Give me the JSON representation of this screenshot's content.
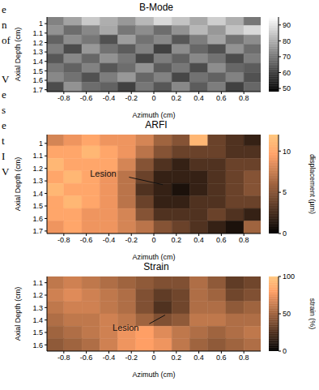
{
  "margin_text": [
    [
      "e",
      "n",
      "of"
    ],
    [
      "V",
      "e",
      "s",
      "e",
      "t",
      "I",
      "V"
    ]
  ],
  "chart_data": [
    {
      "type": "heatmap",
      "title": "B-Mode",
      "x_label": "Azimuth (cm)",
      "y_label": "Axial Depth (cm)",
      "xlim": [
        -0.95,
        0.95
      ],
      "xticks": [
        -0.8,
        -0.6,
        -0.4,
        -0.2,
        0,
        0.2,
        0.4,
        0.6,
        0.8
      ],
      "ylim": [
        0.93,
        1.72
      ],
      "yticks": [
        1,
        1.1,
        1.2,
        1.3,
        1.4,
        1.5,
        1.6,
        1.7
      ],
      "x": [
        -0.88,
        -0.72,
        -0.56,
        -0.4,
        -0.24,
        -0.08,
        0.08,
        0.24,
        0.4,
        0.56,
        0.72,
        0.88
      ],
      "y": [
        0.97,
        1.07,
        1.17,
        1.27,
        1.37,
        1.47,
        1.57,
        1.67
      ],
      "cells": [
        [
          72,
          78,
          85,
          80,
          76,
          82,
          88,
          84,
          79,
          86,
          80,
          70
        ],
        [
          75,
          68,
          73,
          79,
          70,
          74,
          68,
          75,
          82,
          76,
          84,
          88
        ],
        [
          66,
          74,
          70,
          63,
          77,
          69,
          73,
          64,
          71,
          78,
          69,
          74
        ],
        [
          71,
          62,
          76,
          69,
          65,
          72,
          60,
          74,
          67,
          63,
          75,
          68
        ],
        [
          64,
          73,
          67,
          75,
          70,
          61,
          71,
          66,
          73,
          69,
          62,
          71
        ],
        [
          70,
          66,
          72,
          64,
          68,
          75,
          65,
          70,
          62,
          74,
          67,
          65
        ],
        [
          73,
          69,
          63,
          71,
          76,
          67,
          72,
          61,
          69,
          66,
          72,
          63
        ],
        [
          62,
          75,
          68,
          66,
          60,
          70,
          64,
          73,
          65,
          71,
          60,
          67
        ]
      ],
      "color": "gray",
      "colorbar": {
        "range": [
          48,
          95
        ],
        "ticks": [
          50,
          60,
          70,
          80,
          90
        ]
      }
    },
    {
      "type": "heatmap",
      "title": "ARFI",
      "x_label": "Azimuth (cm)",
      "y_label": "Axial Depth (cm)",
      "xlim": [
        -0.95,
        0.95
      ],
      "xticks": [
        -0.8,
        -0.6,
        -0.4,
        -0.2,
        0,
        0.2,
        0.4,
        0.6,
        0.8
      ],
      "ylim": [
        0.93,
        1.72
      ],
      "yticks": [
        1,
        1.1,
        1.2,
        1.3,
        1.4,
        1.5,
        1.6,
        1.7
      ],
      "x": [
        -0.88,
        -0.72,
        -0.56,
        -0.4,
        -0.24,
        -0.08,
        0.08,
        0.24,
        0.4,
        0.56,
        0.72,
        0.88
      ],
      "y": [
        0.97,
        1.07,
        1.17,
        1.27,
        1.37,
        1.47,
        1.57,
        1.67
      ],
      "cells": [
        [
          8,
          9,
          10,
          9,
          9,
          8,
          6,
          5,
          11,
          4,
          3,
          2
        ],
        [
          10,
          10,
          11,
          10,
          9,
          7,
          5,
          4,
          4,
          4,
          3,
          3
        ],
        [
          11,
          10,
          10,
          10,
          8,
          5,
          3,
          2,
          3,
          3,
          4,
          4
        ],
        [
          10,
          11,
          10,
          9,
          7,
          4,
          2,
          2,
          2,
          3,
          4,
          5
        ],
        [
          11,
          10,
          10,
          9,
          7,
          3,
          2,
          1,
          2,
          3,
          4,
          5
        ],
        [
          10,
          11,
          10,
          9,
          7,
          4,
          2,
          2,
          3,
          3,
          4,
          4
        ],
        [
          10,
          10,
          9,
          9,
          8,
          5,
          3,
          3,
          3,
          4,
          3,
          2
        ],
        [
          9,
          10,
          9,
          9,
          8,
          7,
          5,
          4,
          3,
          2,
          1,
          6
        ]
      ],
      "color": "copper",
      "colorbar": {
        "range": [
          0,
          12
        ],
        "ticks": [
          0,
          5,
          10
        ],
        "label": "displacement (µm)"
      },
      "annotations": [
        {
          "text": "Lesion",
          "x": -0.45,
          "y": 1.24,
          "arrow": [
            [
              -0.22,
              1.27
            ],
            [
              0.08,
              1.33
            ]
          ]
        }
      ]
    },
    {
      "type": "heatmap",
      "title": "Strain",
      "x_label": "Azimuth (cm)",
      "y_label": "Axial Depth (cm)",
      "xlim": [
        -0.95,
        0.95
      ],
      "xticks": [
        -0.8,
        -0.6,
        -0.4,
        -0.2,
        0,
        0.2,
        0.4,
        0.6,
        0.8
      ],
      "ylim": [
        1.05,
        1.65
      ],
      "yticks": [
        1.1,
        1.2,
        1.3,
        1.4,
        1.5,
        1.6
      ],
      "x": [
        -0.88,
        -0.72,
        -0.56,
        -0.4,
        -0.24,
        -0.08,
        0.08,
        0.24,
        0.4,
        0.56,
        0.72,
        0.88
      ],
      "y": [
        1.1,
        1.2,
        1.3,
        1.4,
        1.5,
        1.6
      ],
      "cells": [
        [
          60,
          65,
          60,
          55,
          50,
          45,
          40,
          40,
          55,
          45,
          30,
          35
        ],
        [
          65,
          70,
          65,
          60,
          55,
          40,
          30,
          35,
          55,
          50,
          35,
          40
        ],
        [
          60,
          65,
          65,
          60,
          55,
          40,
          25,
          35,
          55,
          55,
          45,
          50
        ],
        [
          55,
          60,
          60,
          65,
          60,
          50,
          40,
          45,
          60,
          60,
          55,
          55
        ],
        [
          50,
          55,
          60,
          65,
          75,
          80,
          70,
          60,
          55,
          50,
          55,
          60
        ],
        [
          45,
          50,
          55,
          65,
          75,
          80,
          75,
          60,
          50,
          45,
          50,
          55
        ]
      ],
      "color": "copper",
      "colorbar": {
        "range": [
          0,
          100
        ],
        "ticks": [
          0,
          50,
          100
        ],
        "label": "strain (%)"
      },
      "annotations": [
        {
          "text": "Lesion",
          "x": -0.25,
          "y": 1.46,
          "arrow": [
            [
              -0.04,
              1.43
            ],
            [
              0.1,
              1.36
            ]
          ]
        }
      ]
    }
  ]
}
